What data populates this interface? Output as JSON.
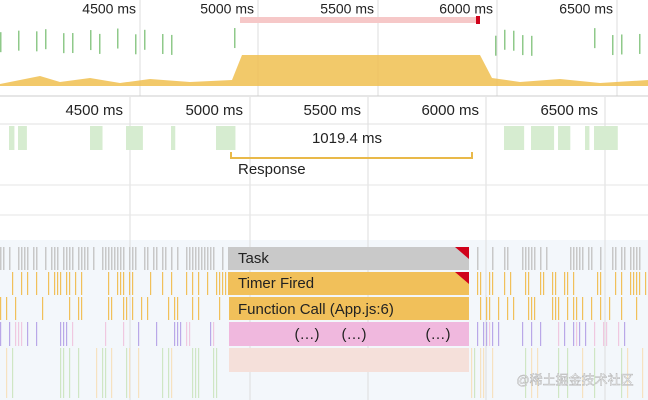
{
  "overview": {
    "ticks": [
      "4500 ms",
      "5000 ms",
      "5500 ms",
      "6000 ms",
      "6500 ms"
    ]
  },
  "timeline": {
    "ticks": [
      "4500 ms",
      "5000 ms",
      "5500 ms",
      "6000 ms",
      "6500 ms"
    ]
  },
  "interaction": {
    "duration": "1019.4 ms",
    "label": "Response"
  },
  "flame": {
    "task": "Task",
    "timer": "Timer Fired",
    "function_call": "Function Call (App.js:6)",
    "anonymous": [
      "(…)",
      "(…)",
      "(…)"
    ]
  },
  "watermark": "@稀土掘金技术社区"
}
